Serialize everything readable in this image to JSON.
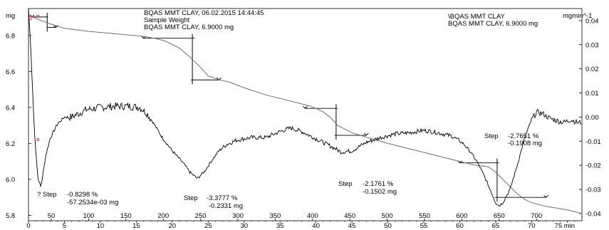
{
  "chart_data": {
    "type": "line",
    "header_left": [
      "BQAS  MMT CLAY, 06.02.2015 14:44:45",
      "Sample Weight",
      "BQAS  MMT CLAY, 6.9000 mg"
    ],
    "header_right": [
      "\\BQAS  MMT CLAY",
      "BQAS  MMT CLAY, 6.9000 mg"
    ],
    "y_left_unit": "mg",
    "y_right_unit": "mgmin^-1",
    "y_left_ticks": [
      "6.8",
      "6.6",
      "6.4",
      "6.2",
      "6.0",
      "5.8"
    ],
    "y_right_ticks": [
      "0.04",
      "0.03",
      "0.02",
      "0.01",
      "0.00",
      "-0.01",
      "-0.02",
      "-0.03",
      "-0.04"
    ],
    "temp_ticks": [
      "50",
      "100",
      "150",
      "200",
      "250",
      "300",
      "350",
      "400",
      "450",
      "500",
      "550",
      "600",
      "650",
      "700"
    ],
    "time_ticks": [
      "0",
      "5",
      "10",
      "15",
      "20",
      "25",
      "30",
      "35",
      "40",
      "45",
      "50",
      "55",
      "60",
      "65",
      "70",
      "75 min"
    ],
    "ylim_left": [
      5.77,
      6.95
    ],
    "ylim_right": [
      -0.043,
      0.045
    ],
    "xlim_min": [
      0,
      77
    ],
    "tg_series": {
      "name": "Sample Weight",
      "x_min": [
        0,
        0.5,
        1,
        2,
        3,
        5,
        8,
        12,
        16,
        17.5,
        19,
        21,
        22.5,
        24,
        25,
        26.5,
        28,
        30,
        33,
        36,
        39,
        40,
        41,
        42,
        43,
        45,
        47,
        50,
        53,
        55,
        58,
        60,
        62,
        64,
        65,
        66,
        67,
        68,
        69,
        70,
        72,
        75,
        77
      ],
      "y_mg": [
        6.9,
        6.905,
        6.895,
        6.88,
        6.865,
        6.84,
        6.825,
        6.81,
        6.795,
        6.785,
        6.77,
        6.73,
        6.68,
        6.62,
        6.575,
        6.555,
        6.54,
        6.51,
        6.47,
        6.44,
        6.41,
        6.395,
        6.375,
        6.345,
        6.3,
        6.26,
        6.235,
        6.2,
        6.17,
        6.15,
        6.12,
        6.1,
        6.08,
        6.07,
        6.04,
        6.0,
        5.96,
        5.92,
        5.89,
        5.87,
        5.85,
        5.83,
        5.81
      ]
    },
    "dtg_series": {
      "name": "\\BQAS  MMT CLAY",
      "x_min": [
        0,
        0.3,
        0.8,
        1.3,
        1.7,
        2.0,
        2.4,
        3.0,
        4.0,
        5.0,
        6.0,
        8.0,
        10.0,
        12.0,
        14.0,
        15.5,
        16.5,
        17.5,
        18.5,
        20.0,
        21.5,
        22.5,
        23.5,
        24.5,
        25.5,
        26.5,
        27.5,
        29.0,
        31.0,
        33.0,
        35.0,
        36.5,
        38.0,
        40.0,
        42.0,
        43.5,
        45.0,
        47.0,
        49.0,
        51.0,
        53.0,
        55.0,
        57.0,
        59.0,
        60.5,
        61.5,
        62.5,
        63.5,
        64.5,
        65.0,
        65.5,
        66.0,
        67.0,
        68.0,
        69.0,
        70.0,
        70.7,
        71.5,
        72.5,
        73.5,
        74.5,
        75.5,
        76.5,
        77.0
      ],
      "y_mgmin": [
        0.045,
        0.03,
        -0.005,
        -0.025,
        -0.029,
        -0.024,
        -0.016,
        -0.009,
        -0.003,
        0.0,
        0.0,
        0.003,
        0.004,
        0.0045,
        0.0045,
        0.004,
        0.0015,
        -0.003,
        -0.008,
        -0.014,
        -0.019,
        -0.023,
        -0.0255,
        -0.0225,
        -0.018,
        -0.014,
        -0.0115,
        -0.0095,
        -0.0085,
        -0.0085,
        -0.006,
        -0.0045,
        -0.006,
        -0.009,
        -0.012,
        -0.0145,
        -0.014,
        -0.0105,
        -0.0085,
        -0.007,
        -0.0065,
        -0.0055,
        -0.0065,
        -0.008,
        -0.011,
        -0.0145,
        -0.019,
        -0.025,
        -0.032,
        -0.0355,
        -0.0368,
        -0.0355,
        -0.03,
        -0.02,
        -0.009,
        -0.001,
        0.002,
        0.0015,
        -0.0005,
        -0.0015,
        -0.0022,
        -0.001,
        -0.0025,
        -0.002
      ]
    },
    "annotations": [
      {
        "label": "? Step",
        "value_pct": "-0.8298 %",
        "value_mg": "-57.2534e-03 mg"
      },
      {
        "label": "Step",
        "value_pct": "-3.3777 %",
        "value_mg": "-0.2331 mg"
      },
      {
        "label": "Step",
        "value_pct": "-2.1761 %",
        "value_mg": "-0.1502 mg"
      },
      {
        "label": "Step",
        "value_pct": "-2.7651 %",
        "value_mg": "-0.1908 mg"
      }
    ],
    "step_constructions": [
      {
        "x_start": 0.5,
        "x_end": 3.8,
        "y_start": 6.903,
        "y_end": 6.845,
        "x_mid": 2.6
      },
      {
        "x_start": 16.0,
        "x_end": 26.5,
        "y_start": 6.785,
        "y_end": 6.553,
        "x_mid": 22.8
      },
      {
        "x_start": 38.5,
        "x_end": 47.0,
        "y_start": 6.395,
        "y_end": 6.245,
        "x_mid": 42.8
      },
      {
        "x_start": 60.0,
        "x_end": 72.0,
        "y_start": 6.092,
        "y_end": 5.9,
        "x_mid": 65.2
      }
    ],
    "grid": false,
    "legend": "none"
  }
}
